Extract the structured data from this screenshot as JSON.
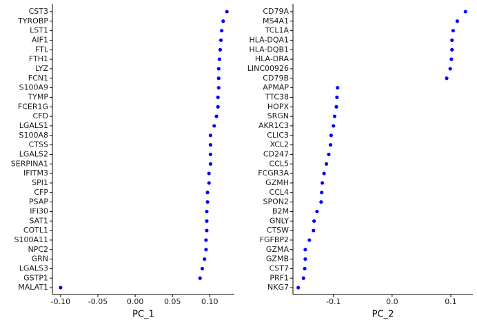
{
  "chart_data": [
    {
      "type": "dot",
      "x_label": "PC_1",
      "color": "#0000ff",
      "categories": [
        "CST3",
        "TYROBP",
        "LST1",
        "AIF1",
        "FTL",
        "FTH1",
        "LYZ",
        "FCN1",
        "S100A9",
        "TYMP",
        "FCER1G",
        "CFD",
        "LGALS1",
        "S100A8",
        "CTSS",
        "LGALS2",
        "SERPINA1",
        "IFITM3",
        "SPI1",
        "CFP",
        "PSAP",
        "IFI30",
        "SAT1",
        "COTL1",
        "S100A11",
        "NPC2",
        "GRN",
        "LGALS3",
        "GSTP1",
        "MALAT1"
      ],
      "values": [
        0.123,
        0.118,
        0.116,
        0.115,
        0.114,
        0.113,
        0.112,
        0.112,
        0.112,
        0.111,
        0.111,
        0.109,
        0.106,
        0.101,
        0.101,
        0.101,
        0.101,
        0.099,
        0.099,
        0.097,
        0.097,
        0.096,
        0.096,
        0.096,
        0.095,
        0.095,
        0.093,
        0.09,
        0.087,
        -0.1
      ],
      "xlim": [
        -0.111,
        0.133
      ],
      "xticks": [
        {
          "value": -0.1,
          "label": "-0.10"
        },
        -0.05,
        {
          "value": 0,
          "label": "0.00"
        },
        0.05,
        {
          "value": 0.1,
          "label": "0.10"
        }
      ]
    },
    {
      "type": "dot",
      "x_label": "PC_2",
      "color": "#0000ff",
      "categories": [
        "CD79A",
        "MS4A1",
        "TCL1A",
        "HLA-DQA1",
        "HLA-DQB1",
        "HLA-DRA",
        "LINC00926",
        "CD79B",
        "APMAP",
        "TTC38",
        "HOPX",
        "SRGN",
        "AKR1C3",
        "CLIC3",
        "XCL2",
        "CD247",
        "CCL5",
        "FCGR3A",
        "GZMH",
        "CCL4",
        "SPON2",
        "B2M",
        "GNLY",
        "CTSW",
        "FGFBP2",
        "GZMA",
        "GZMB",
        "CST7",
        "PRF1",
        "NKG7"
      ],
      "values": [
        0.125,
        0.111,
        0.104,
        0.102,
        0.102,
        0.101,
        0.099,
        0.093,
        -0.093,
        -0.094,
        -0.095,
        -0.098,
        -0.1,
        -0.104,
        -0.105,
        -0.108,
        -0.112,
        -0.116,
        -0.119,
        -0.12,
        -0.121,
        -0.128,
        -0.133,
        -0.134,
        -0.141,
        -0.148,
        -0.148,
        -0.149,
        -0.151,
        -0.16
      ],
      "xlim": [
        -0.169,
        0.1376
      ],
      "xticks": [
        -0.1,
        {
          "value": 0,
          "label": "0.0"
        },
        0.1
      ]
    }
  ]
}
